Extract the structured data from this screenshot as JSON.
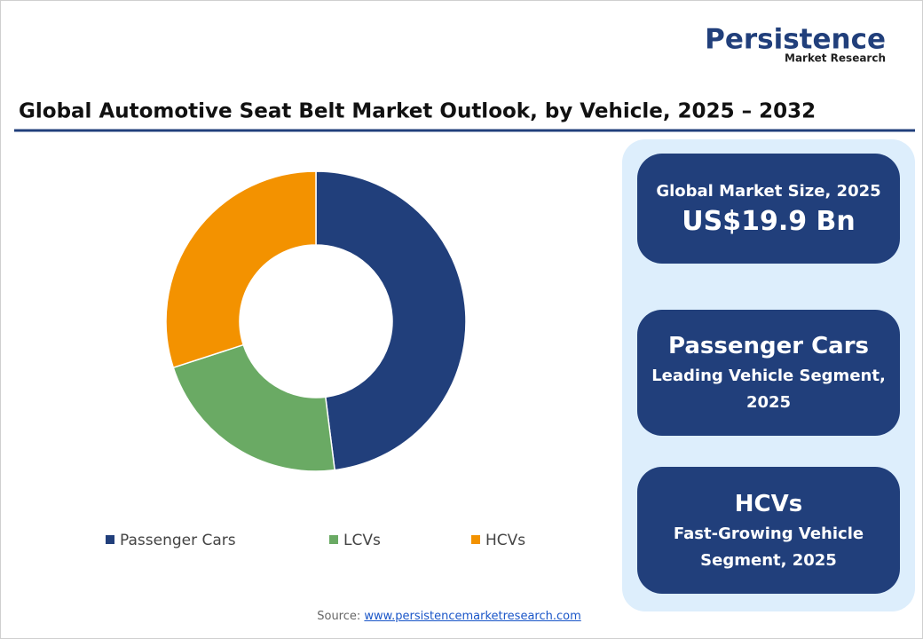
{
  "logo": {
    "name": "Persistence",
    "tagline": "Market Research"
  },
  "chart_data": {
    "type": "donut",
    "title": "Global Automotive Seat Belt Market Outlook, by Vehicle, 2025 – 2032",
    "categories": [
      "Passenger Cars",
      "LCVs",
      "HCVs"
    ],
    "values": [
      48,
      22,
      30
    ],
    "colors": [
      "#213f7b",
      "#6aaa64",
      "#f39200"
    ],
    "legend": "bottom"
  },
  "cards": [
    {
      "heading": "Global Market Size, 2025",
      "big": "US$19.9 Bn"
    },
    {
      "big": "Passenger Cars",
      "lines": [
        "Leading Vehicle Segment,",
        "2025"
      ]
    },
    {
      "big": "HCVs",
      "lines": [
        "Fast-Growing Vehicle",
        "Segment, 2025"
      ]
    }
  ],
  "source": {
    "label": "Source:",
    "url": "www.persistencemarketresearch.com"
  }
}
